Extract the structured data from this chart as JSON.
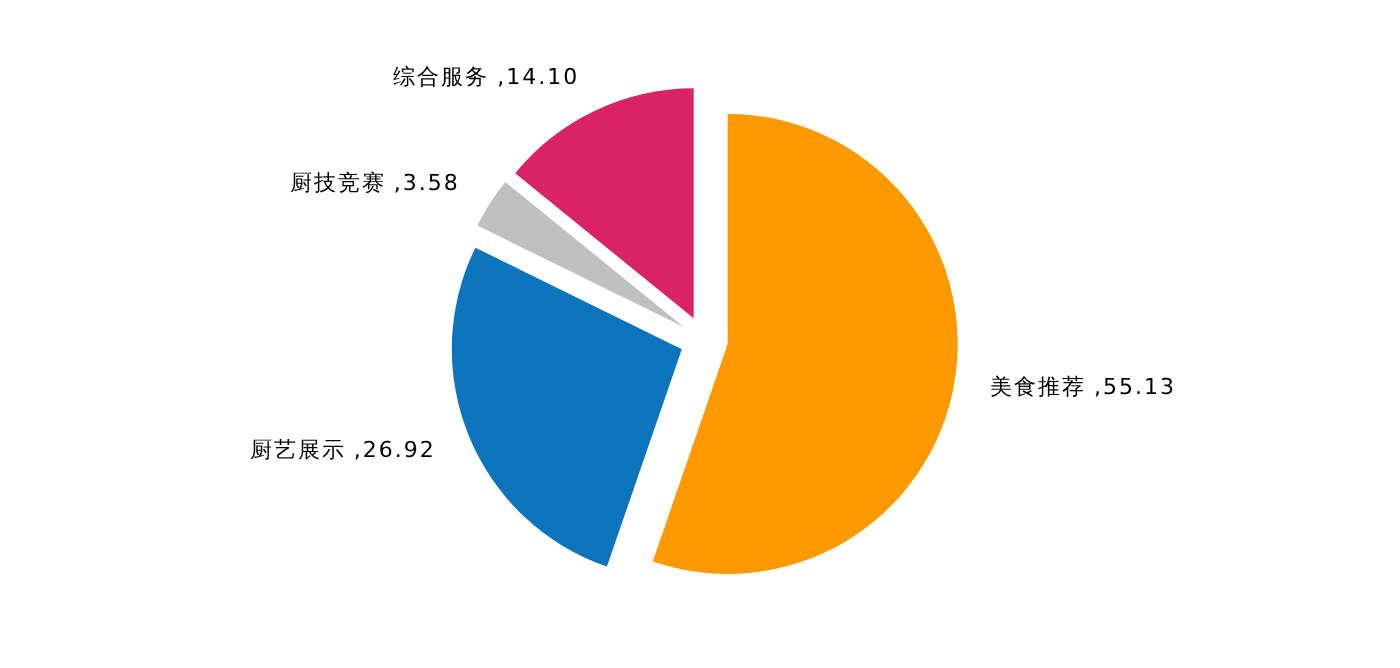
{
  "chart_data": {
    "type": "pie",
    "categories": [
      "美食推荐",
      "厨艺展示",
      "厨技竞赛",
      "综合服务"
    ],
    "values": [
      55.13,
      26.92,
      3.58,
      14.1
    ],
    "value_labels": [
      ",55.13",
      ",26.92",
      ",3.58",
      ",14.10"
    ],
    "colors": [
      "#fe9a00",
      "#0b74bd",
      "#c0c0c0",
      "#d92366"
    ]
  }
}
